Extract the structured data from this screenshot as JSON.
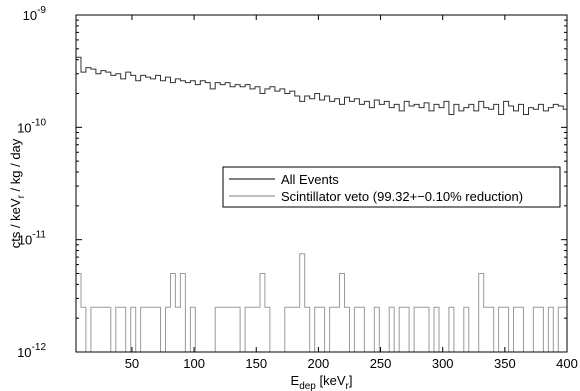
{
  "chart_data": {
    "type": "line",
    "step": true,
    "xlabel": {
      "main": "E",
      "sub": "dep",
      "unit_open": " [keV",
      "unit_sub": "r",
      "unit_close": "]"
    },
    "ylabel": {
      "part1": "cts / keV",
      "sub": "r",
      "part2": " / kg / day"
    },
    "xlim": [
      5,
      400
    ],
    "ylim": [
      1e-12,
      1e-09
    ],
    "yscale": "log",
    "xticks": [
      50,
      100,
      150,
      200,
      250,
      300,
      350,
      400
    ],
    "yticks": [
      {
        "base": "10",
        "exp": "-12",
        "value": 1e-12
      },
      {
        "base": "10",
        "exp": "-11",
        "value": 1e-11
      },
      {
        "base": "10",
        "exp": "-10",
        "value": 1e-10
      },
      {
        "base": "10",
        "exp": "-9",
        "value": 1e-09
      }
    ],
    "legend_position": "center-right",
    "grid": false,
    "series": [
      {
        "name": "All Events",
        "color": "#333333",
        "x": [
          5,
          9,
          13,
          17,
          21,
          25,
          29,
          33,
          37,
          41,
          45,
          49,
          53,
          57,
          61,
          65,
          69,
          73,
          77,
          81,
          85,
          89,
          93,
          97,
          101,
          105,
          109,
          113,
          117,
          121,
          125,
          129,
          133,
          137,
          141,
          145,
          149,
          153,
          157,
          161,
          165,
          169,
          173,
          177,
          181,
          185,
          189,
          193,
          197,
          201,
          205,
          209,
          213,
          217,
          221,
          225,
          229,
          233,
          237,
          241,
          245,
          249,
          253,
          257,
          261,
          265,
          269,
          273,
          277,
          281,
          285,
          289,
          293,
          297,
          301,
          305,
          309,
          313,
          317,
          321,
          325,
          329,
          333,
          337,
          341,
          345,
          349,
          353,
          357,
          361,
          365,
          369,
          373,
          377,
          381,
          385,
          389,
          393,
          397
        ],
        "y": [
          4.2e-10,
          3.1e-10,
          3.4e-10,
          3.3e-10,
          3e-10,
          3.2e-10,
          3.1e-10,
          2.9e-10,
          3e-10,
          2.7e-10,
          3.1e-10,
          2.9e-10,
          2.6e-10,
          2.9e-10,
          2.8e-10,
          2.7e-10,
          2.9e-10,
          2.6e-10,
          2.8e-10,
          2.5e-10,
          2.7e-10,
          2.6e-10,
          2.5e-10,
          2.6e-10,
          2.4e-10,
          2.6e-10,
          2.5e-10,
          2.2e-10,
          2.5e-10,
          2.4e-10,
          2.5e-10,
          2.3e-10,
          2.4e-10,
          2.3e-10,
          2.4e-10,
          2.2e-10,
          2.3e-10,
          2e-10,
          2.2e-10,
          2.3e-10,
          2.1e-10,
          2.2e-10,
          2e-10,
          2.1e-10,
          1.9e-10,
          1.7e-10,
          1.9e-10,
          1.8e-10,
          2e-10,
          1.75e-10,
          1.9e-10,
          1.7e-10,
          1.8e-10,
          1.6e-10,
          1.85e-10,
          1.7e-10,
          1.8e-10,
          1.6e-10,
          1.7e-10,
          1.5e-10,
          1.75e-10,
          1.6e-10,
          1.7e-10,
          1.5e-10,
          1.6e-10,
          1.4e-10,
          1.7e-10,
          1.55e-10,
          1.6e-10,
          1.5e-10,
          1.65e-10,
          1.4e-10,
          1.6e-10,
          1.5e-10,
          1.7e-10,
          1.3e-10,
          1.6e-10,
          1.4e-10,
          1.5e-10,
          1.6e-10,
          1.4e-10,
          1.7e-10,
          1.5e-10,
          1.45e-10,
          1.6e-10,
          1.3e-10,
          1.7e-10,
          1.55e-10,
          1.4e-10,
          1.6e-10,
          1.3e-10,
          1.5e-10,
          1.45e-10,
          1.6e-10,
          1.4e-10,
          1.5e-10,
          1.6e-10,
          1.55e-10,
          1.45e-10
        ]
      },
      {
        "name": "Scintillator veto (99.32+−0.10% reduction)",
        "color": "#9a9a9a",
        "x": [
          5,
          9,
          13,
          17,
          21,
          25,
          29,
          33,
          37,
          41,
          45,
          49,
          53,
          57,
          61,
          65,
          69,
          73,
          77,
          81,
          85,
          89,
          93,
          97,
          101,
          105,
          109,
          113,
          117,
          121,
          125,
          129,
          133,
          137,
          141,
          145,
          149,
          153,
          157,
          161,
          165,
          169,
          173,
          177,
          181,
          185,
          189,
          193,
          197,
          201,
          205,
          209,
          213,
          217,
          221,
          225,
          229,
          233,
          237,
          241,
          245,
          249,
          253,
          257,
          261,
          265,
          269,
          273,
          277,
          281,
          285,
          289,
          293,
          297,
          301,
          305,
          309,
          313,
          317,
          321,
          325,
          329,
          333,
          337,
          341,
          345,
          349,
          353,
          357,
          361,
          365,
          369,
          373,
          377,
          381,
          385,
          389,
          393,
          397
        ],
        "y": [
          5e-12,
          2.5e-12,
          1e-12,
          2.5e-12,
          2.5e-12,
          2.5e-12,
          2.5e-12,
          1e-12,
          2.5e-12,
          2.5e-12,
          1e-12,
          2.5e-12,
          1e-12,
          2.5e-12,
          2.5e-12,
          2.5e-12,
          2.5e-12,
          1e-12,
          2.5e-12,
          5e-12,
          2.5e-12,
          5e-12,
          1e-12,
          2.5e-12,
          1e-12,
          1e-12,
          1e-12,
          1e-12,
          2.5e-12,
          2.5e-12,
          2.5e-12,
          2.5e-12,
          2.5e-12,
          1e-12,
          2.5e-12,
          2.5e-12,
          2.5e-12,
          5e-12,
          2.5e-12,
          1e-12,
          1e-12,
          1e-12,
          2.5e-12,
          2.5e-12,
          2.5e-12,
          7.5e-12,
          2.5e-12,
          1e-12,
          2.5e-12,
          2.5e-12,
          1e-12,
          2.5e-12,
          2.5e-12,
          5e-12,
          2.5e-12,
          1e-12,
          2.5e-12,
          2.5e-12,
          1e-12,
          1e-12,
          2.5e-12,
          1e-12,
          1e-12,
          2.5e-12,
          1e-12,
          2.5e-12,
          2.5e-12,
          1e-12,
          2.5e-12,
          2.5e-12,
          2.5e-12,
          1e-12,
          2.5e-12,
          1e-12,
          1e-12,
          2.5e-12,
          1e-12,
          1e-12,
          2.5e-12,
          1e-12,
          1e-12,
          5e-12,
          2.5e-12,
          2.5e-12,
          1e-12,
          2.5e-12,
          2.5e-12,
          1e-12,
          2.5e-12,
          2.5e-12,
          1e-12,
          1e-12,
          2.5e-12,
          2.5e-12,
          1e-12,
          2.5e-12,
          1e-12,
          2.5e-12,
          2.5e-12
        ]
      }
    ]
  }
}
